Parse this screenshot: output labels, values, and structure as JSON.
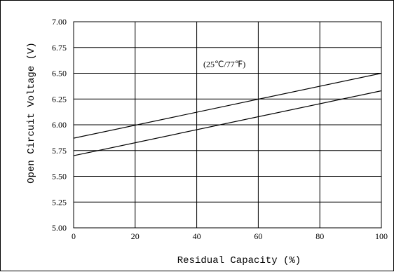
{
  "chart_data": {
    "type": "line",
    "title": "",
    "xlabel": "Residual Capacity (%)",
    "ylabel": "Open Circuit Voltage (V)",
    "xlim": [
      0,
      100
    ],
    "ylim": [
      5.0,
      7.0
    ],
    "x_ticks": [
      "0",
      "20",
      "40",
      "60",
      "80",
      "100"
    ],
    "y_ticks": [
      "5.00",
      "5.25",
      "5.50",
      "5.75",
      "6.00",
      "6.25",
      "6.50",
      "6.75",
      "7.00"
    ],
    "grid": true,
    "annotations": [
      {
        "text": "(25℃/77℉)",
        "x": 49,
        "y": 6.56
      }
    ],
    "series": [
      {
        "x": [
          0,
          100
        ],
        "values": [
          5.87,
          6.5
        ]
      },
      {
        "x": [
          0,
          100
        ],
        "values": [
          5.7,
          6.33
        ]
      }
    ]
  }
}
